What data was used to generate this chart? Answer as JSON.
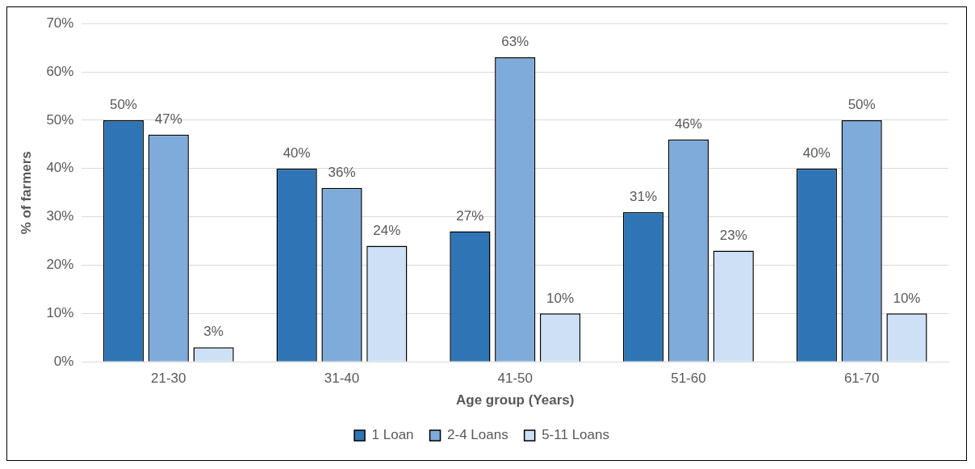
{
  "chart_data": {
    "type": "bar",
    "xlabel": "Age group (Years)",
    "ylabel": "% of farmers",
    "categories": [
      "21-30",
      "31-40",
      "41-50",
      "51-60",
      "61-70"
    ],
    "series": [
      {
        "name": "1 Loan",
        "color": "#2f75b5",
        "values": [
          50,
          40,
          27,
          31,
          40
        ],
        "value_labels": [
          "50%",
          "40%",
          "27%",
          "31%",
          "40%"
        ]
      },
      {
        "name": "2-4 Loans",
        "color": "#7fabdb",
        "values": [
          47,
          36,
          63,
          46,
          50
        ],
        "value_labels": [
          "47%",
          "36%",
          "63%",
          "46%",
          "50%"
        ]
      },
      {
        "name": "5-11 Loans",
        "color": "#cde0f5",
        "values": [
          3,
          24,
          10,
          23,
          10
        ],
        "value_labels": [
          "3%",
          "24%",
          "10%",
          "23%",
          "10%"
        ]
      }
    ],
    "ylim": [
      0,
      70
    ],
    "yticks": [
      {
        "value": 0,
        "label": "0%"
      },
      {
        "value": 10,
        "label": "10%"
      },
      {
        "value": 20,
        "label": "20%"
      },
      {
        "value": 30,
        "label": "30%"
      },
      {
        "value": 40,
        "label": "40%"
      },
      {
        "value": 50,
        "label": "50%"
      },
      {
        "value": 60,
        "label": "60%"
      },
      {
        "value": 70,
        "label": "70%"
      }
    ],
    "grid": "y",
    "legend": "bottom"
  }
}
